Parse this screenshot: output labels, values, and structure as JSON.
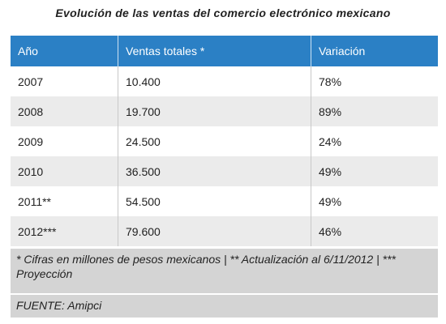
{
  "title": "Evolución de las ventas del comercio electrónico mexicano",
  "table": {
    "header": [
      "Año",
      "Ventas totales *",
      "Variación"
    ],
    "rows": [
      [
        "2007",
        "10.400",
        "78%"
      ],
      [
        "2008",
        "19.700",
        "89%"
      ],
      [
        "2009",
        "24.500",
        "24%"
      ],
      [
        "2010",
        "36.500",
        "49%"
      ],
      [
        "2011**",
        "54.500",
        "49%"
      ],
      [
        "2012***",
        "79.600",
        "46%"
      ]
    ]
  },
  "notes": "* Cifras en millones de pesos mexicanos | ** Actualización al 6/11/2012 | *** Proyección",
  "source": "FUENTE: Amipci"
}
